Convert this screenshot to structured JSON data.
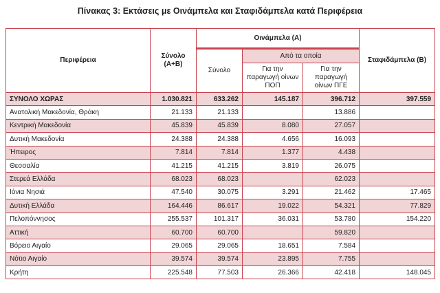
{
  "title": "Πίνακας 3: Εκτάσεις με Οινάμπελα και Σταφιδάμπελα κατά Περιφέρεια",
  "headers": {
    "region": "Περιφέρεια",
    "total_ab": "Σύνολο (Α+Β)",
    "wine_group": "Οινάμπελα (Α)",
    "of_which": "Από τα οποία",
    "wine_total": "Σύνολο",
    "pdo": "Για την παραγωγή οίνων ΠΟΠ",
    "pgi": "Για την παραγωγή οίνων ΠΓΕ",
    "raisin": "Σταφιδάμπελα (Β)"
  },
  "rows": [
    {
      "region": "ΣΥΝΟΛΟ ΧΩΡΑΣ",
      "total": "1.030.821",
      "wine_total": "633.262",
      "pdo": "145.187",
      "pgi": "396.712",
      "raisin": "397.559"
    },
    {
      "region": "Ανατολική Μακεδονία, Θράκη",
      "total": "21.133",
      "wine_total": "21.133",
      "pdo": "",
      "pgi": "13.886",
      "raisin": ""
    },
    {
      "region": "Κεντρική Μακεδονία",
      "total": "45.839",
      "wine_total": "45.839",
      "pdo": "8.080",
      "pgi": "27.057",
      "raisin": ""
    },
    {
      "region": "Δυτική Μακεδονία",
      "total": "24.388",
      "wine_total": "24.388",
      "pdo": "4.656",
      "pgi": "16.093",
      "raisin": ""
    },
    {
      "region": "Ήπειρος",
      "total": "7.814",
      "wine_total": "7.814",
      "pdo": "1.377",
      "pgi": "4.438",
      "raisin": ""
    },
    {
      "region": "Θεσσαλία",
      "total": "41.215",
      "wine_total": "41.215",
      "pdo": "3.819",
      "pgi": "26.075",
      "raisin": ""
    },
    {
      "region": "Στερεά Ελλάδα",
      "total": "68.023",
      "wine_total": "68.023",
      "pdo": "",
      "pgi": "62.023",
      "raisin": ""
    },
    {
      "region": "Ιόνια Νησιά",
      "total": "47.540",
      "wine_total": "30.075",
      "pdo": "3.291",
      "pgi": "21.462",
      "raisin": "17.465"
    },
    {
      "region": "Δυτική Ελλάδα",
      "total": "164.446",
      "wine_total": "86.617",
      "pdo": "19.022",
      "pgi": "54.321",
      "raisin": "77.829"
    },
    {
      "region": "Πελοπόννησος",
      "total": "255.537",
      "wine_total": "101.317",
      "pdo": "36.031",
      "pgi": "53.780",
      "raisin": "154.220"
    },
    {
      "region": "Αττική",
      "total": "60.700",
      "wine_total": "60.700",
      "pdo": "",
      "pgi": "59.820",
      "raisin": ""
    },
    {
      "region": "Βόρειο Αιγαίο",
      "total": "29.065",
      "wine_total": "29.065",
      "pdo": "18.651",
      "pgi": "7.584",
      "raisin": ""
    },
    {
      "region": "Νότιο Αιγαίο",
      "total": "39.574",
      "wine_total": "39.574",
      "pdo": "23.895",
      "pgi": "7.755",
      "raisin": ""
    },
    {
      "region": "Κρήτη",
      "total": "225.548",
      "wine_total": "77.503",
      "pdo": "26.366",
      "pgi": "42.418",
      "raisin": "148.045"
    }
  ]
}
